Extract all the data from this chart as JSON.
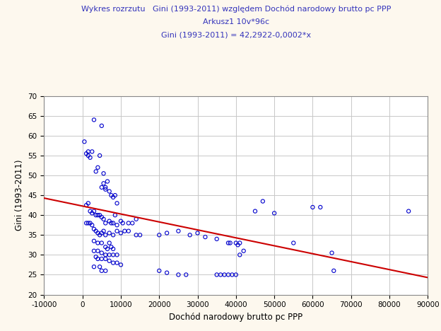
{
  "title_line1": "Wykres rozrzutu   Gini (1993-2011) względem Dochód narodowy brutto pc PPP",
  "title_line2": "Arkusz1 10v*96c",
  "title_line3": "Gini (1993-2011) = 42,2922-0,0002*x",
  "xlabel": "Dochód narodowy brutto pc PPP",
  "ylabel": "Gini (1993-2011)",
  "xlim": [
    -10000,
    90000
  ],
  "ylim": [
    20,
    70
  ],
  "xticks": [
    -10000,
    0,
    10000,
    20000,
    30000,
    40000,
    50000,
    60000,
    70000,
    80000,
    90000
  ],
  "yticks": [
    20,
    25,
    30,
    35,
    40,
    45,
    50,
    55,
    60,
    65,
    70
  ],
  "background_color": "#fdf8ee",
  "plot_bg_color": "#ffffff",
  "grid_color": "#c8c8c8",
  "title_color": "#3333bb",
  "axis_label_color": "#000000",
  "scatter_color": "#0000cc",
  "line_color": "#cc0000",
  "regression_intercept": 42.2922,
  "regression_slope": -0.0002,
  "points": [
    [
      500,
      58.5
    ],
    [
      1000,
      55.5
    ],
    [
      1500,
      56
    ],
    [
      1500,
      55
    ],
    [
      2000,
      54.5
    ],
    [
      2500,
      56
    ],
    [
      3000,
      64
    ],
    [
      3500,
      51
    ],
    [
      4000,
      52
    ],
    [
      4500,
      55
    ],
    [
      5000,
      62.5
    ],
    [
      5500,
      50.5
    ],
    [
      6000,
      47
    ],
    [
      5000,
      47
    ],
    [
      5500,
      48
    ],
    [
      6000,
      46.5
    ],
    [
      7000,
      46
    ],
    [
      6500,
      48.5
    ],
    [
      7500,
      45
    ],
    [
      8000,
      44.5
    ],
    [
      8500,
      45
    ],
    [
      9000,
      43
    ],
    [
      1000,
      42.5
    ],
    [
      1500,
      43
    ],
    [
      2000,
      41
    ],
    [
      2500,
      40.5
    ],
    [
      3000,
      41
    ],
    [
      3500,
      40
    ],
    [
      4000,
      40
    ],
    [
      4500,
      40
    ],
    [
      5000,
      39.5
    ],
    [
      5500,
      39
    ],
    [
      6000,
      38
    ],
    [
      7000,
      38.5
    ],
    [
      7500,
      38
    ],
    [
      8000,
      38
    ],
    [
      8500,
      40
    ],
    [
      9000,
      37.5
    ],
    [
      10000,
      38.5
    ],
    [
      10500,
      38
    ],
    [
      12000,
      38
    ],
    [
      13000,
      38
    ],
    [
      14000,
      39
    ],
    [
      1000,
      38
    ],
    [
      1500,
      38
    ],
    [
      2000,
      38
    ],
    [
      2500,
      37.5
    ],
    [
      3000,
      36.5
    ],
    [
      3500,
      36
    ],
    [
      4000,
      35.5
    ],
    [
      4500,
      35
    ],
    [
      5000,
      35.5
    ],
    [
      5500,
      36
    ],
    [
      6000,
      35
    ],
    [
      7000,
      35.5
    ],
    [
      8000,
      35
    ],
    [
      9000,
      36
    ],
    [
      10000,
      35.5
    ],
    [
      11000,
      36
    ],
    [
      12000,
      36
    ],
    [
      14000,
      35
    ],
    [
      15000,
      35
    ],
    [
      20000,
      35
    ],
    [
      22000,
      35.5
    ],
    [
      25000,
      36
    ],
    [
      28000,
      35
    ],
    [
      30000,
      35.5
    ],
    [
      32000,
      34.5
    ],
    [
      35000,
      34
    ],
    [
      38000,
      33
    ],
    [
      38500,
      33
    ],
    [
      40000,
      33
    ],
    [
      40500,
      32.5
    ],
    [
      41000,
      33
    ],
    [
      3000,
      33.5
    ],
    [
      4000,
      33
    ],
    [
      5000,
      33
    ],
    [
      6000,
      32
    ],
    [
      6500,
      31.5
    ],
    [
      7000,
      33
    ],
    [
      7500,
      32
    ],
    [
      8000,
      31.5
    ],
    [
      3000,
      31
    ],
    [
      4000,
      31
    ],
    [
      5000,
      30.5
    ],
    [
      6000,
      30
    ],
    [
      7000,
      30
    ],
    [
      8000,
      30
    ],
    [
      9000,
      30
    ],
    [
      3500,
      29.5
    ],
    [
      4000,
      29
    ],
    [
      5000,
      29
    ],
    [
      6000,
      29
    ],
    [
      7000,
      28.5
    ],
    [
      8000,
      28
    ],
    [
      9000,
      28
    ],
    [
      10000,
      27.5
    ],
    [
      3000,
      27
    ],
    [
      4500,
      27
    ],
    [
      5000,
      26
    ],
    [
      6000,
      26
    ],
    [
      20000,
      26
    ],
    [
      22000,
      25.5
    ],
    [
      25000,
      25
    ],
    [
      27000,
      25
    ],
    [
      35000,
      25
    ],
    [
      36000,
      25
    ],
    [
      37000,
      25
    ],
    [
      38000,
      25
    ],
    [
      39000,
      25
    ],
    [
      40000,
      25
    ],
    [
      41000,
      30
    ],
    [
      42000,
      31
    ],
    [
      45000,
      41
    ],
    [
      47000,
      43.5
    ],
    [
      50000,
      40.5
    ],
    [
      55000,
      33
    ],
    [
      60000,
      42
    ],
    [
      62000,
      42
    ],
    [
      65000,
      30.5
    ],
    [
      65500,
      26
    ],
    [
      85000,
      41
    ]
  ]
}
